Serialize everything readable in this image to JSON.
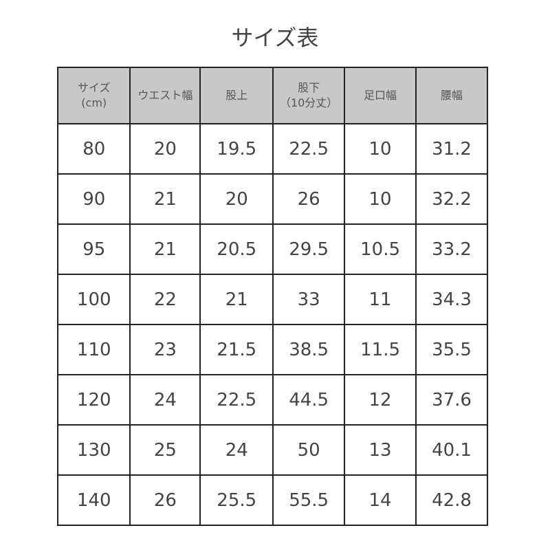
{
  "title": "サイズ表",
  "headers": [
    [
      "サイズ",
      "(cm)"
    ],
    [
      "ウエスト幅",
      ""
    ],
    [
      "股上",
      ""
    ],
    [
      "股下",
      "（10分丈）"
    ],
    [
      "足口幅",
      ""
    ],
    [
      "腰幅",
      ""
    ]
  ],
  "rows": [
    [
      "80",
      "20",
      "19.5",
      "22.5",
      "10",
      "31.2"
    ],
    [
      "90",
      "21",
      "20",
      "26",
      "10",
      "32.2"
    ],
    [
      "95",
      "21",
      "20.5",
      "29.5",
      "10.5",
      "33.2"
    ],
    [
      "100",
      "22",
      "21",
      "33",
      "11",
      "34.3"
    ],
    [
      "110",
      "23",
      "21.5",
      "38.5",
      "11.5",
      "35.5"
    ],
    [
      "120",
      "24",
      "22.5",
      "44.5",
      "12",
      "37.6"
    ],
    [
      "130",
      "25",
      "24",
      "50",
      "13",
      "40.1"
    ],
    [
      "140",
      "26",
      "25.5",
      "55.5",
      "14",
      "42.8"
    ]
  ],
  "colors": {
    "header_bg": "#c8c8c8",
    "border": "#222222"
  }
}
